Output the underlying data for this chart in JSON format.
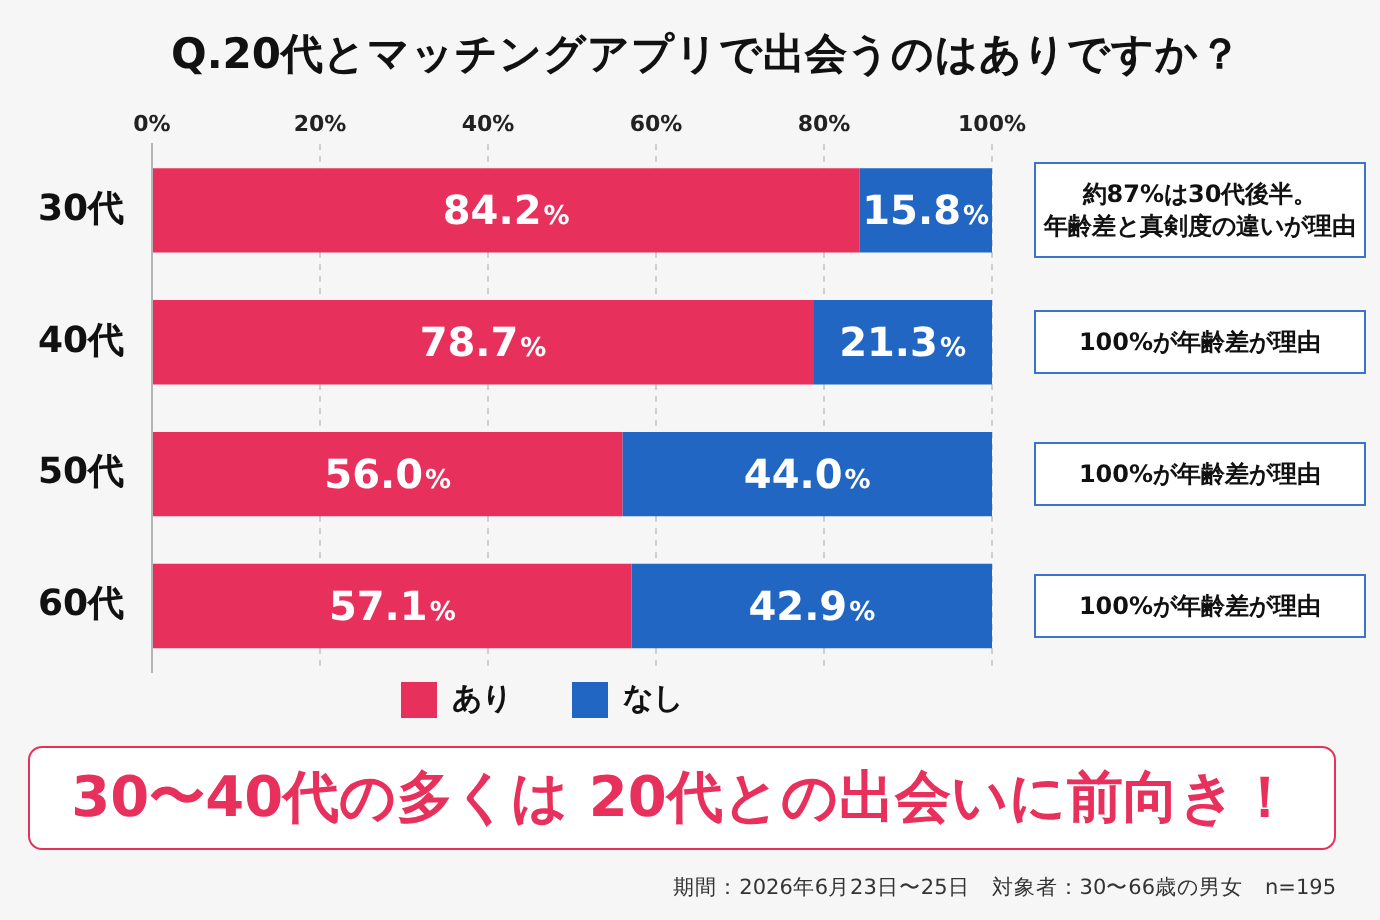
{
  "chart_data": {
    "type": "bar",
    "orientation": "horizontal",
    "stacked": true,
    "title": "Q.20代とマッチングアプリで出会うのはありですか？",
    "categories": [
      "30代",
      "40代",
      "50代",
      "60代"
    ],
    "series": [
      {
        "name": "あり",
        "color": "#e8305c",
        "values": [
          84.2,
          78.7,
          56.0,
          57.1
        ],
        "value_labels": [
          "84.2%",
          "78.7%",
          "56.0%",
          "57.1%"
        ]
      },
      {
        "name": "なし",
        "color": "#2166c2",
        "values": [
          15.8,
          21.3,
          44.0,
          42.9
        ],
        "value_labels": [
          "15.8%",
          "21.3%",
          "44.0%",
          "42.9%"
        ]
      }
    ],
    "xlim": [
      0,
      100
    ],
    "xticks": [
      {
        "value": 0,
        "label": "0%"
      },
      {
        "value": 20,
        "label": "20%"
      },
      {
        "value": 40,
        "label": "40%"
      },
      {
        "value": 60,
        "label": "60%"
      },
      {
        "value": 80,
        "label": "80%"
      },
      {
        "value": 100,
        "label": "100%"
      }
    ],
    "grid": "x",
    "legend": "bottom",
    "annotations": [
      "約87%は30代後半。年齢差と真剣度の違いが理由",
      "100%が年齢差が理由",
      "100%が年齢差が理由",
      "100%が年齢差が理由",
      "30〜40代の多くは 20代との出会いに前向き！",
      "期間：2026年6月23日〜25日　対象者：30〜66歳の男女　n=195"
    ]
  }
}
